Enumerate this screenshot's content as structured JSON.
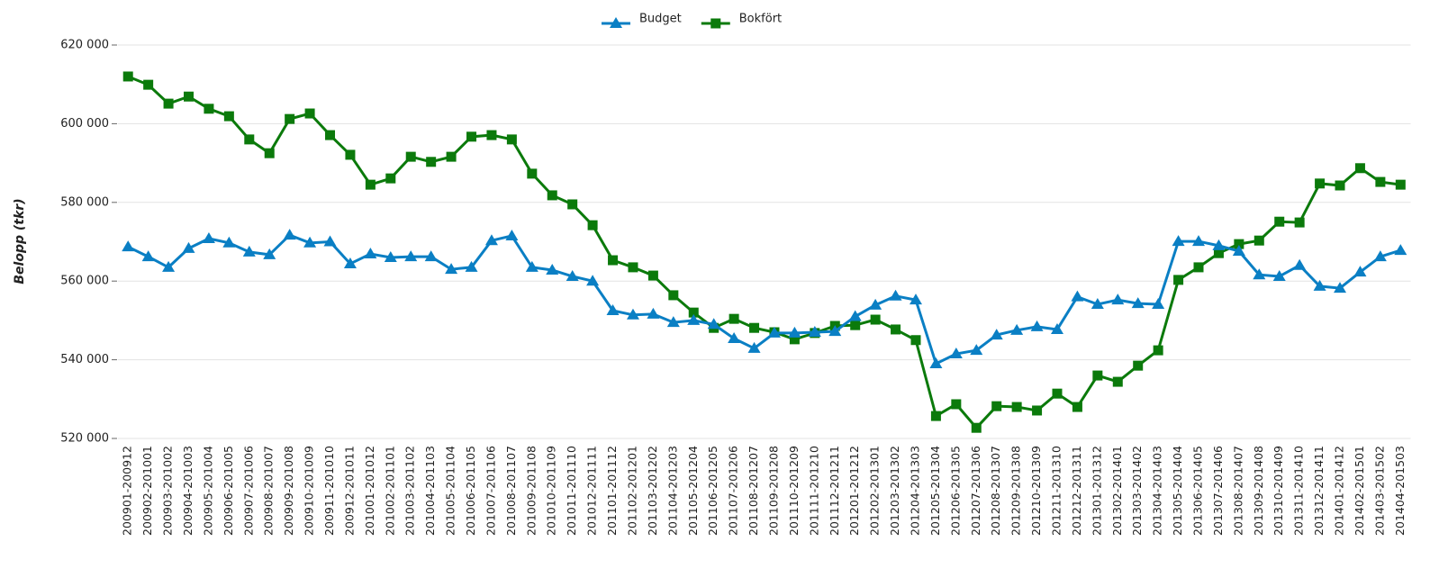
{
  "chart_data": {
    "type": "line",
    "y_label": "Belopp (tkr)",
    "categories": [
      "200901-200912",
      "200902-201001",
      "200903-201002",
      "200904-201003",
      "200905-201004",
      "200906-201005",
      "200907-201006",
      "200908-201007",
      "200909-201008",
      "200910-201009",
      "200911-201010",
      "200912-201011",
      "201001-201012",
      "201002-201101",
      "201003-201102",
      "201004-201103",
      "201005-201104",
      "201006-201105",
      "201007-201106",
      "201008-201107",
      "201009-201108",
      "201010-201109",
      "201011-201110",
      "201012-201111",
      "201101-201112",
      "201102-201201",
      "201103-201202",
      "201104-201203",
      "201105-201204",
      "201106-201205",
      "201107-201206",
      "201108-201207",
      "201109-201208",
      "201110-201209",
      "201111-201210",
      "201112-201211",
      "201201-201212",
      "201202-201301",
      "201203-201302",
      "201204-201303",
      "201205-201304",
      "201206-201305",
      "201207-201306",
      "201208-201307",
      "201209-201308",
      "201210-201309",
      "201211-201310",
      "201212-201311",
      "201301-201312",
      "201302-201401",
      "201303-201402",
      "201304-201403",
      "201305-201404",
      "201306-201405",
      "201307-201406",
      "201308-201407",
      "201309-201408",
      "201310-201409",
      "201311-201410",
      "201312-201411",
      "201401-201412",
      "201402-201501",
      "201403-201502",
      "201404-201503"
    ],
    "series": [
      {
        "name": "Budget",
        "color": "#0a7fc4",
        "marker": "triangle",
        "values": [
          568700,
          566200,
          563500,
          568300,
          570800,
          569700,
          567400,
          566700,
          571700,
          569700,
          570000,
          564400,
          566900,
          566000,
          566200,
          566200,
          563000,
          563500,
          570300,
          571500,
          563500,
          562800,
          561200,
          560000,
          552500,
          551400,
          551600,
          549500,
          550000,
          549000,
          545400,
          542900,
          546800,
          546800,
          547000,
          547200,
          551000,
          553900,
          556200,
          555200,
          539000,
          541500,
          542400,
          546300,
          547500,
          548400,
          547700,
          556000,
          554100,
          555200,
          554300,
          554100,
          570100,
          570100,
          569000,
          567600,
          561600,
          561200,
          564000,
          558700,
          558200,
          562300,
          566200,
          567800
        ]
      },
      {
        "name": "Bokfört",
        "color": "#0b7a0b",
        "marker": "square",
        "values": [
          612000,
          609900,
          605100,
          606900,
          603800,
          601900,
          596000,
          592500,
          601200,
          602600,
          597100,
          592100,
          584500,
          586100,
          591600,
          590300,
          591600,
          596700,
          597100,
          596000,
          587300,
          581800,
          579500,
          574200,
          565300,
          563500,
          561400,
          556400,
          552000,
          548100,
          550400,
          548100,
          547000,
          545200,
          546800,
          548600,
          548800,
          550200,
          547700,
          545000,
          525700,
          528700,
          522700,
          528200,
          528000,
          527100,
          531400,
          528000,
          536000,
          534400,
          538500,
          542400,
          560300,
          563500,
          567100,
          569400,
          570300,
          575100,
          574900,
          584800,
          584300,
          588700,
          585200,
          584500
        ]
      }
    ],
    "ylim": [
      520000,
      620000
    ],
    "yticks": [
      {
        "value": 520000,
        "label": "520 000"
      },
      {
        "value": 540000,
        "label": "540 000"
      },
      {
        "value": 560000,
        "label": "560 000"
      },
      {
        "value": 580000,
        "label": "580 000"
      },
      {
        "value": 600000,
        "label": "600 000"
      },
      {
        "value": 620000,
        "label": "620 000"
      }
    ],
    "grid": true,
    "legend": "top"
  }
}
